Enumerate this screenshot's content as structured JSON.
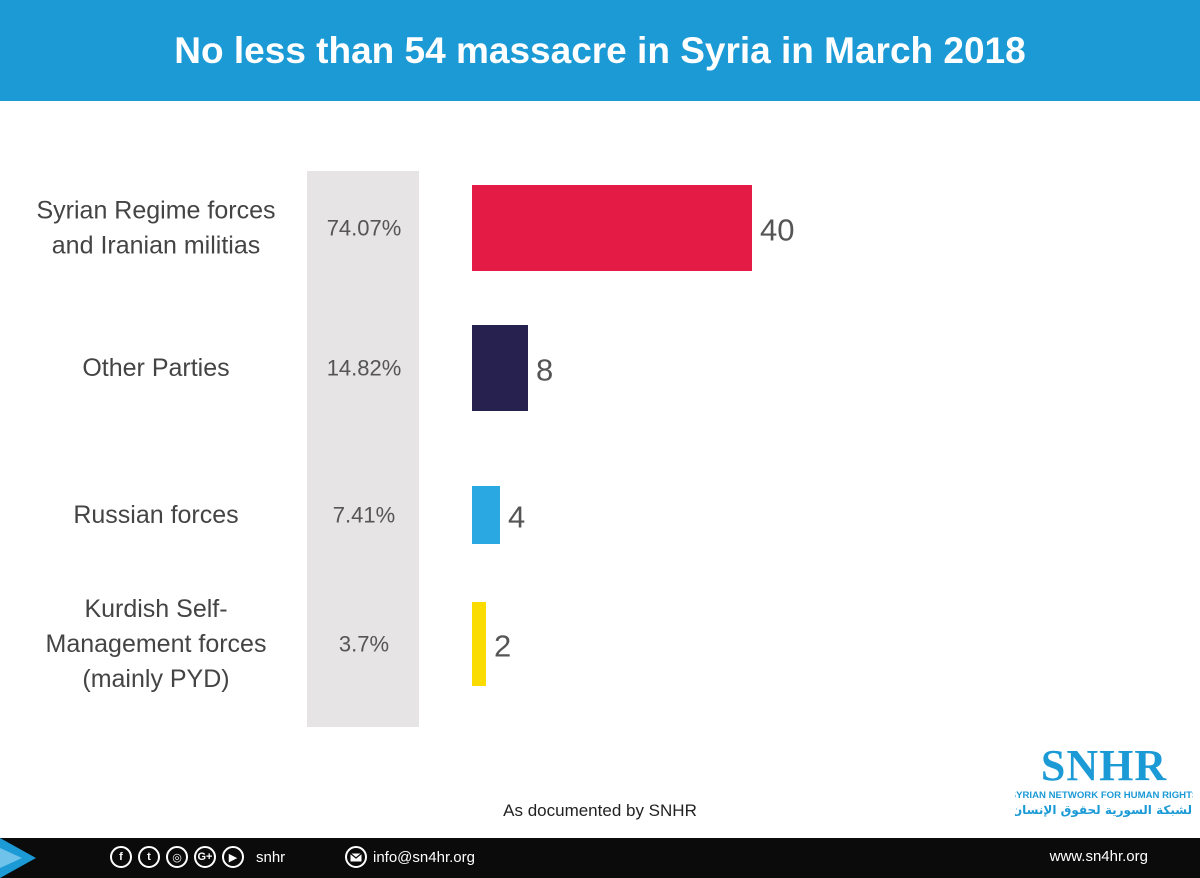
{
  "header": {
    "title": "No less than 54 massacre in Syria in March 2018"
  },
  "chart_data": {
    "type": "bar",
    "orientation": "horizontal",
    "title": "No less than 54 massacre in Syria in March 2018",
    "categories": [
      [
        "Syrian Regime forces",
        "and Iranian militias"
      ],
      [
        "Other Parties"
      ],
      [
        "Russian forces"
      ],
      [
        "Kurdish Self-",
        "Management forces",
        "(mainly PYD)"
      ]
    ],
    "values": [
      40,
      8,
      4,
      2
    ],
    "value_labels": [
      "40",
      "8",
      "4",
      "2"
    ],
    "percentages": [
      "74.07%",
      "14.82%",
      "7.41%",
      "3.7%"
    ],
    "colors": [
      "#e31b45",
      "#27214f",
      "#29a8e2",
      "#fbdc02"
    ],
    "grid": false,
    "legend": "none"
  },
  "footnote": "As documented by SNHR",
  "logo": {
    "name": "SNHR",
    "subtitle": "SYRIAN NETWORK FOR HUMAN RIGHTS",
    "arabic": "الشبكة السورية لحقوق الإنسان",
    "color": "#1b9ad6"
  },
  "footer": {
    "social_icons": [
      "facebook-icon",
      "twitter-icon",
      "instagram-icon",
      "google-plus-icon",
      "youtube-icon"
    ],
    "social_glyphs": [
      "f",
      "t",
      "◎",
      "G+",
      "▶"
    ],
    "handle": "snhr",
    "email": "info@sn4hr.org",
    "website": "www.sn4hr.org",
    "accent": "#1b9ad6"
  }
}
